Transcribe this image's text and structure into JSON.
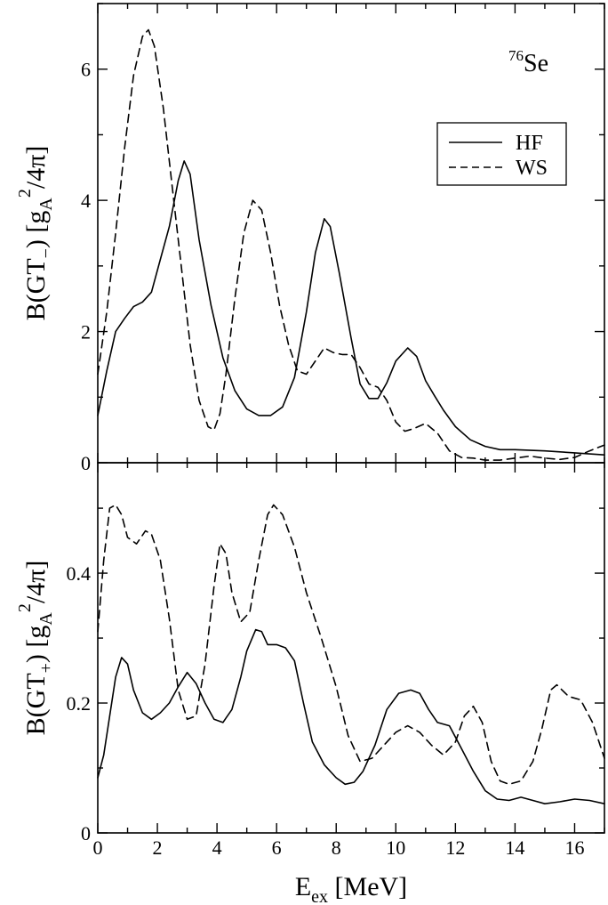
{
  "chart_data": [
    {
      "type": "line",
      "panel": "top",
      "ylabel": {
        "main": "B(GT",
        "sub": "−",
        "mid": ")  [g",
        "sub2": "A",
        "sup": "2",
        "tail": "/4π]"
      },
      "annotation": {
        "sup": "76",
        "text": "Se"
      },
      "legend": {
        "placement": "top-right",
        "entries": [
          "HF",
          "WS"
        ]
      },
      "xlim": [
        0,
        17
      ],
      "ylim": [
        0,
        7
      ],
      "yticks": [
        0,
        2,
        4,
        6
      ],
      "ytick_labels": [
        "0",
        "2",
        "4",
        "6"
      ],
      "series": [
        {
          "name": "HF",
          "style": "solid",
          "color": "#000000",
          "points": [
            [
              0,
              0.72
            ],
            [
              0.3,
              1.4
            ],
            [
              0.6,
              2.0
            ],
            [
              0.9,
              2.2
            ],
            [
              1.2,
              2.38
            ],
            [
              1.5,
              2.45
            ],
            [
              1.8,
              2.6
            ],
            [
              2.1,
              3.1
            ],
            [
              2.4,
              3.6
            ],
            [
              2.7,
              4.3
            ],
            [
              2.9,
              4.6
            ],
            [
              3.1,
              4.4
            ],
            [
              3.4,
              3.4
            ],
            [
              3.8,
              2.4
            ],
            [
              4.2,
              1.6
            ],
            [
              4.6,
              1.1
            ],
            [
              5.0,
              0.82
            ],
            [
              5.4,
              0.72
            ],
            [
              5.8,
              0.72
            ],
            [
              6.2,
              0.85
            ],
            [
              6.6,
              1.3
            ],
            [
              7.0,
              2.3
            ],
            [
              7.3,
              3.2
            ],
            [
              7.6,
              3.72
            ],
            [
              7.8,
              3.6
            ],
            [
              8.1,
              2.9
            ],
            [
              8.5,
              1.9
            ],
            [
              8.8,
              1.2
            ],
            [
              9.1,
              0.98
            ],
            [
              9.4,
              0.98
            ],
            [
              9.7,
              1.22
            ],
            [
              10.0,
              1.55
            ],
            [
              10.4,
              1.75
            ],
            [
              10.7,
              1.62
            ],
            [
              11.0,
              1.25
            ],
            [
              11.3,
              1.02
            ],
            [
              11.6,
              0.8
            ],
            [
              12.0,
              0.55
            ],
            [
              12.5,
              0.35
            ],
            [
              13.0,
              0.25
            ],
            [
              13.5,
              0.2
            ],
            [
              14.0,
              0.2
            ],
            [
              15.0,
              0.18
            ],
            [
              16.0,
              0.15
            ],
            [
              17.0,
              0.12
            ]
          ]
        },
        {
          "name": "WS",
          "style": "dashed",
          "color": "#000000",
          "points": [
            [
              0,
              1.35
            ],
            [
              0.3,
              2.3
            ],
            [
              0.6,
              3.5
            ],
            [
              0.9,
              4.8
            ],
            [
              1.2,
              5.9
            ],
            [
              1.5,
              6.5
            ],
            [
              1.7,
              6.6
            ],
            [
              1.9,
              6.35
            ],
            [
              2.2,
              5.4
            ],
            [
              2.5,
              4.2
            ],
            [
              2.8,
              3.0
            ],
            [
              3.1,
              1.8
            ],
            [
              3.4,
              0.95
            ],
            [
              3.7,
              0.55
            ],
            [
              3.9,
              0.5
            ],
            [
              4.1,
              0.75
            ],
            [
              4.3,
              1.35
            ],
            [
              4.6,
              2.5
            ],
            [
              4.9,
              3.5
            ],
            [
              5.2,
              4.0
            ],
            [
              5.5,
              3.85
            ],
            [
              5.8,
              3.2
            ],
            [
              6.1,
              2.4
            ],
            [
              6.4,
              1.8
            ],
            [
              6.7,
              1.4
            ],
            [
              7.0,
              1.35
            ],
            [
              7.3,
              1.55
            ],
            [
              7.6,
              1.75
            ],
            [
              7.9,
              1.68
            ],
            [
              8.2,
              1.65
            ],
            [
              8.5,
              1.65
            ],
            [
              8.8,
              1.45
            ],
            [
              9.1,
              1.2
            ],
            [
              9.4,
              1.15
            ],
            [
              9.7,
              0.95
            ],
            [
              10.0,
              0.62
            ],
            [
              10.3,
              0.48
            ],
            [
              10.6,
              0.52
            ],
            [
              11.0,
              0.6
            ],
            [
              11.4,
              0.45
            ],
            [
              11.8,
              0.18
            ],
            [
              12.2,
              0.08
            ],
            [
              12.6,
              0.07
            ],
            [
              13.0,
              0.04
            ],
            [
              13.5,
              0.04
            ],
            [
              14.0,
              0.07
            ],
            [
              14.5,
              0.1
            ],
            [
              15.0,
              0.07
            ],
            [
              15.5,
              0.05
            ],
            [
              16.0,
              0.08
            ],
            [
              16.5,
              0.18
            ],
            [
              17.0,
              0.27
            ]
          ]
        }
      ]
    },
    {
      "type": "line",
      "panel": "bottom",
      "ylabel": {
        "main": "B(GT",
        "sub": "+",
        "mid": ")  [g",
        "sub2": "A",
        "sup": "2",
        "tail": "/4π]"
      },
      "xlabel": {
        "main": "E",
        "sub": "ex",
        "tail": " [MeV]"
      },
      "xlim": [
        0,
        17
      ],
      "ylim": [
        0,
        0.57
      ],
      "xticks": [
        0,
        2,
        4,
        6,
        8,
        10,
        12,
        14,
        16
      ],
      "xtick_labels": [
        "0",
        "2",
        "4",
        "6",
        "8",
        "10",
        "12",
        "14",
        "16"
      ],
      "yticks": [
        0,
        0.2,
        0.4
      ],
      "ytick_labels": [
        "0",
        "0.2",
        "0.4"
      ],
      "series": [
        {
          "name": "HF",
          "style": "solid",
          "color": "#000000",
          "points": [
            [
              0,
              0.085
            ],
            [
              0.2,
              0.12
            ],
            [
              0.4,
              0.18
            ],
            [
              0.6,
              0.24
            ],
            [
              0.8,
              0.27
            ],
            [
              1.0,
              0.26
            ],
            [
              1.2,
              0.22
            ],
            [
              1.5,
              0.185
            ],
            [
              1.8,
              0.175
            ],
            [
              2.1,
              0.185
            ],
            [
              2.4,
              0.2
            ],
            [
              2.7,
              0.225
            ],
            [
              3.0,
              0.247
            ],
            [
              3.3,
              0.23
            ],
            [
              3.6,
              0.2
            ],
            [
              3.9,
              0.175
            ],
            [
              4.2,
              0.17
            ],
            [
              4.5,
              0.19
            ],
            [
              4.8,
              0.24
            ],
            [
              5.0,
              0.28
            ],
            [
              5.3,
              0.313
            ],
            [
              5.5,
              0.31
            ],
            [
              5.7,
              0.29
            ],
            [
              6.0,
              0.29
            ],
            [
              6.3,
              0.285
            ],
            [
              6.6,
              0.265
            ],
            [
              6.9,
              0.2
            ],
            [
              7.2,
              0.14
            ],
            [
              7.6,
              0.105
            ],
            [
              8.0,
              0.085
            ],
            [
              8.3,
              0.075
            ],
            [
              8.6,
              0.078
            ],
            [
              8.9,
              0.095
            ],
            [
              9.3,
              0.135
            ],
            [
              9.7,
              0.19
            ],
            [
              10.1,
              0.215
            ],
            [
              10.5,
              0.22
            ],
            [
              10.8,
              0.215
            ],
            [
              11.1,
              0.19
            ],
            [
              11.4,
              0.17
            ],
            [
              11.8,
              0.165
            ],
            [
              12.2,
              0.13
            ],
            [
              12.6,
              0.095
            ],
            [
              13.0,
              0.065
            ],
            [
              13.4,
              0.052
            ],
            [
              13.8,
              0.05
            ],
            [
              14.2,
              0.055
            ],
            [
              14.6,
              0.05
            ],
            [
              15.0,
              0.045
            ],
            [
              15.5,
              0.048
            ],
            [
              16.0,
              0.052
            ],
            [
              16.5,
              0.05
            ],
            [
              17.0,
              0.045
            ]
          ]
        },
        {
          "name": "WS",
          "style": "dashed",
          "color": "#000000",
          "points": [
            [
              0,
              0.31
            ],
            [
              0.2,
              0.42
            ],
            [
              0.4,
              0.5
            ],
            [
              0.6,
              0.505
            ],
            [
              0.8,
              0.49
            ],
            [
              1.0,
              0.455
            ],
            [
              1.3,
              0.445
            ],
            [
              1.6,
              0.465
            ],
            [
              1.8,
              0.46
            ],
            [
              2.1,
              0.42
            ],
            [
              2.4,
              0.33
            ],
            [
              2.7,
              0.22
            ],
            [
              3.0,
              0.175
            ],
            [
              3.3,
              0.18
            ],
            [
              3.6,
              0.26
            ],
            [
              3.9,
              0.38
            ],
            [
              4.1,
              0.445
            ],
            [
              4.3,
              0.43
            ],
            [
              4.5,
              0.37
            ],
            [
              4.8,
              0.325
            ],
            [
              5.1,
              0.34
            ],
            [
              5.4,
              0.42
            ],
            [
              5.7,
              0.49
            ],
            [
              5.9,
              0.505
            ],
            [
              6.2,
              0.49
            ],
            [
              6.6,
              0.44
            ],
            [
              7.0,
              0.37
            ],
            [
              7.5,
              0.3
            ],
            [
              8.0,
              0.225
            ],
            [
              8.4,
              0.15
            ],
            [
              8.8,
              0.11
            ],
            [
              9.2,
              0.115
            ],
            [
              9.6,
              0.135
            ],
            [
              10.0,
              0.155
            ],
            [
              10.4,
              0.165
            ],
            [
              10.8,
              0.155
            ],
            [
              11.2,
              0.135
            ],
            [
              11.6,
              0.12
            ],
            [
              12.0,
              0.14
            ],
            [
              12.3,
              0.18
            ],
            [
              12.6,
              0.195
            ],
            [
              12.9,
              0.17
            ],
            [
              13.2,
              0.11
            ],
            [
              13.5,
              0.08
            ],
            [
              13.8,
              0.075
            ],
            [
              14.2,
              0.08
            ],
            [
              14.6,
              0.11
            ],
            [
              14.9,
              0.16
            ],
            [
              15.2,
              0.22
            ],
            [
              15.4,
              0.228
            ],
            [
              15.8,
              0.21
            ],
            [
              16.2,
              0.205
            ],
            [
              16.6,
              0.17
            ],
            [
              17.0,
              0.115
            ]
          ]
        }
      ]
    }
  ]
}
